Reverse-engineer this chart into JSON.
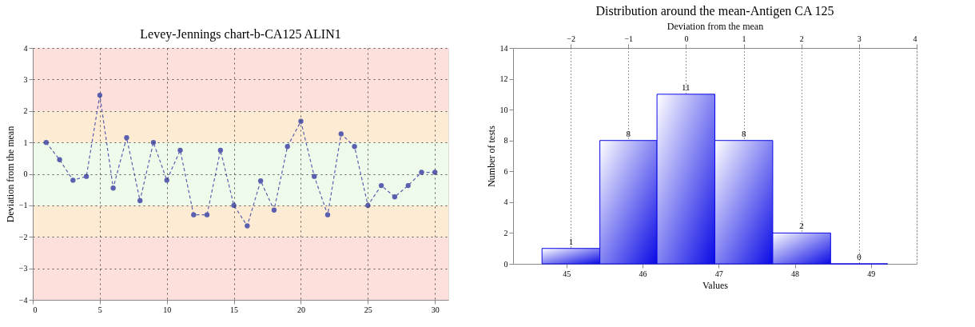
{
  "chart_data": [
    {
      "type": "line",
      "title": "Levey-Jennings chart-b-CA125  ALIN1",
      "ylabel": "Deviation from the mean",
      "x": [
        1,
        2,
        3,
        4,
        5,
        6,
        7,
        8,
        9,
        10,
        11,
        12,
        13,
        14,
        15,
        16,
        17,
        18,
        19,
        20,
        21,
        22,
        23,
        24,
        25,
        26,
        27,
        28,
        29,
        30
      ],
      "values": [
        1.0,
        0.45,
        -0.2,
        -0.08,
        2.5,
        -0.45,
        1.15,
        -0.85,
        1.0,
        -0.2,
        0.75,
        -1.3,
        -1.3,
        0.75,
        -1.0,
        -1.65,
        -0.22,
        -1.15,
        0.87,
        1.67,
        -0.08,
        -1.3,
        1.27,
        0.87,
        -1.0,
        -0.37,
        -0.73,
        -0.37,
        0.05,
        0.05
      ],
      "color": "#5a5fb0",
      "marker": "circle",
      "line_style": "dashed",
      "xlim": [
        0,
        31
      ],
      "xticks": [
        0,
        5,
        10,
        15,
        20,
        25,
        30
      ],
      "ylim": [
        -4,
        4
      ],
      "yticks": [
        -4,
        -3,
        -2,
        -1,
        0,
        1,
        2,
        3,
        4
      ],
      "grid": true,
      "bands": [
        {
          "axis": "y",
          "from": 2,
          "to": 4,
          "color": "#fde0dc"
        },
        {
          "axis": "y",
          "from": 1,
          "to": 2,
          "color": "#fdebd3"
        },
        {
          "axis": "y",
          "from": -1,
          "to": 1,
          "color": "#eefbea"
        },
        {
          "axis": "y",
          "from": -2,
          "to": -1,
          "color": "#fdebd3"
        },
        {
          "axis": "y",
          "from": -4,
          "to": -2,
          "color": "#fde0dc"
        }
      ]
    },
    {
      "type": "histogram",
      "title": "Distribution around the mean-Antigen CA 125",
      "x2label": "Deviation from the mean",
      "xlabel": "Values",
      "ylabel": "Number of tests",
      "bins": [
        44.68,
        45.44,
        46.19,
        46.95,
        47.71,
        48.47,
        49.22
      ],
      "values": [
        1,
        8,
        11,
        8,
        2,
        0
      ],
      "color": "#0a0ae6",
      "data_labels": true,
      "xlim": [
        44.3,
        49.6
      ],
      "xticks": [
        45,
        46,
        47,
        48,
        49
      ],
      "x2lim": [
        -3,
        4
      ],
      "x2ticks": [
        -2,
        -1,
        0,
        1,
        2,
        3,
        4
      ],
      "ylim": [
        0,
        14
      ],
      "yticks": [
        0,
        2,
        4,
        6,
        8,
        10,
        12,
        14
      ],
      "grid": "x"
    }
  ]
}
